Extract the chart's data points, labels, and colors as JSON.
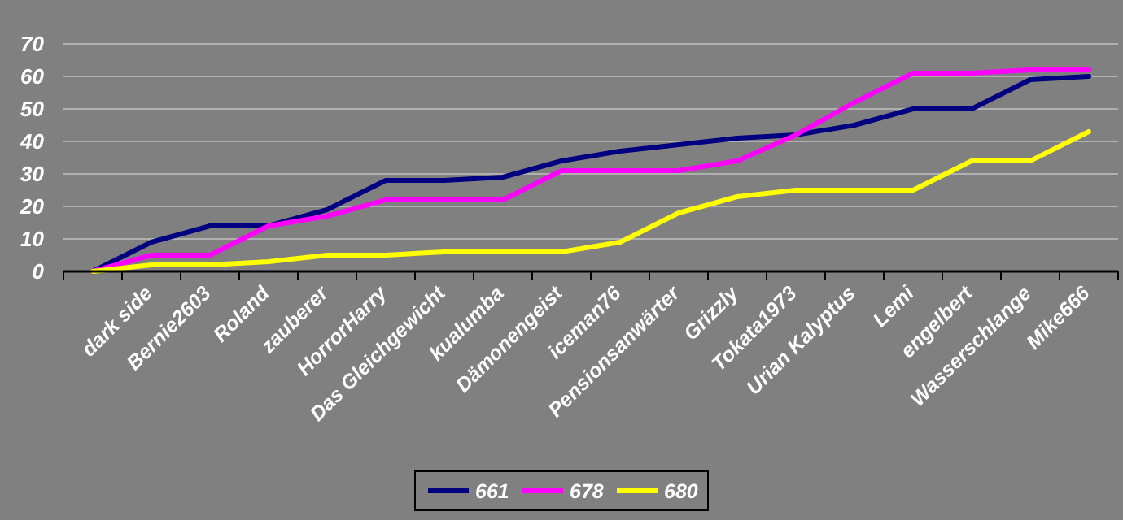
{
  "chart_data": {
    "type": "line",
    "categories": [
      null,
      "dark side",
      "Bernie2603",
      "Roland",
      "zauberer",
      "HorrorHarry",
      "Das Gleichgewicht",
      "kualumba",
      "Dämonengeist",
      "iceman76",
      "Pensionsanwärter",
      "Grizzly",
      "Tokata1973",
      "Urian Kalyptus",
      "Lemi",
      "engelbert",
      "Wasserschlange",
      "Mike666"
    ],
    "series": [
      {
        "name": "661",
        "color": "#000080",
        "values": [
          0,
          9,
          14,
          14,
          19,
          28,
          28,
          29,
          34,
          37,
          39,
          41,
          42,
          45,
          50,
          50,
          59,
          60
        ]
      },
      {
        "name": "678",
        "color": "#ff00ff",
        "values": [
          0,
          5,
          5,
          14,
          17,
          22,
          22,
          22,
          31,
          31,
          31,
          34,
          42,
          52,
          61,
          61,
          62,
          62
        ]
      },
      {
        "name": "680",
        "color": "#ffff00",
        "values": [
          0,
          2,
          2,
          3,
          5,
          5,
          6,
          6,
          6,
          9,
          18,
          23,
          25,
          25,
          25,
          34,
          34,
          43
        ]
      }
    ],
    "ylim": [
      0,
      70
    ],
    "yticks": [
      0,
      10,
      20,
      30,
      40,
      50,
      60,
      70
    ],
    "grid": "y",
    "legend": "bottom",
    "marker": "none",
    "line_style": "solid"
  }
}
